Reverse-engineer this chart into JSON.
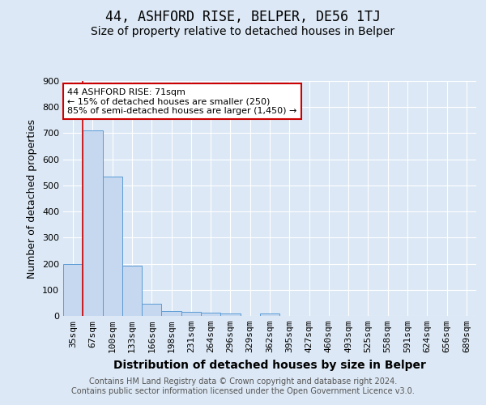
{
  "title": "44, ASHFORD RISE, BELPER, DE56 1TJ",
  "subtitle": "Size of property relative to detached houses in Belper",
  "xlabel": "Distribution of detached houses by size in Belper",
  "ylabel": "Number of detached properties",
  "categories": [
    "35sqm",
    "67sqm",
    "100sqm",
    "133sqm",
    "166sqm",
    "198sqm",
    "231sqm",
    "264sqm",
    "296sqm",
    "329sqm",
    "362sqm",
    "395sqm",
    "427sqm",
    "460sqm",
    "493sqm",
    "525sqm",
    "558sqm",
    "591sqm",
    "624sqm",
    "656sqm",
    "689sqm"
  ],
  "values": [
    200,
    710,
    535,
    192,
    47,
    18,
    14,
    13,
    10,
    0,
    10,
    0,
    0,
    0,
    0,
    0,
    0,
    0,
    0,
    0,
    0
  ],
  "bar_color": "#c5d8f0",
  "bar_edge_color": "#5b9bd5",
  "vline_color": "#cc0000",
  "vline_x_index": 1,
  "annotation_text": "44 ASHFORD RISE: 71sqm\n← 15% of detached houses are smaller (250)\n85% of semi-detached houses are larger (1,450) →",
  "annotation_box_color": "#ffffff",
  "annotation_box_edge": "#cc0000",
  "ylim": [
    0,
    900
  ],
  "yticks": [
    0,
    100,
    200,
    300,
    400,
    500,
    600,
    700,
    800,
    900
  ],
  "bg_color": "#dce8f5",
  "grid_color": "#ffffff",
  "footer": "Contains HM Land Registry data © Crown copyright and database right 2024.\nContains public sector information licensed under the Open Government Licence v3.0.",
  "title_fontsize": 12,
  "subtitle_fontsize": 10,
  "xlabel_fontsize": 10,
  "ylabel_fontsize": 9,
  "footer_fontsize": 7,
  "tick_fontsize": 8,
  "annot_fontsize": 8
}
